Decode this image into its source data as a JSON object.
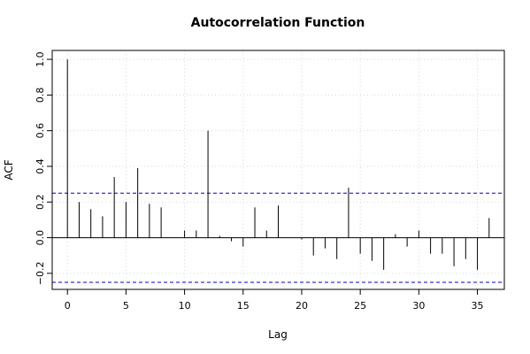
{
  "chart_data": {
    "type": "bar",
    "title": "Autocorrelation Function",
    "xlabel": "Lag",
    "ylabel": "ACF",
    "xlim": [
      -1.3,
      37.3
    ],
    "ylim": [
      -0.29,
      1.05
    ],
    "x_ticks": [
      0,
      5,
      10,
      15,
      20,
      25,
      30,
      35
    ],
    "y_ticks": [
      -0.2,
      0.0,
      0.2,
      0.4,
      0.6,
      0.8,
      1.0
    ],
    "y_tick_labels": [
      "−0.2",
      "0.0",
      "0.2",
      "0.4",
      "0.6",
      "0.8",
      "1.0"
    ],
    "grid": true,
    "confidence_bounds": [
      0.25,
      -0.25
    ],
    "lags": [
      0,
      1,
      2,
      3,
      4,
      5,
      6,
      7,
      8,
      9,
      10,
      11,
      12,
      13,
      14,
      15,
      16,
      17,
      18,
      19,
      20,
      21,
      22,
      23,
      24,
      25,
      26,
      27,
      28,
      29,
      30,
      31,
      32,
      33,
      34,
      35,
      36
    ],
    "values": [
      1.0,
      0.2,
      0.16,
      0.12,
      0.34,
      0.2,
      0.39,
      0.19,
      0.17,
      0.0,
      0.04,
      0.04,
      0.6,
      0.01,
      -0.02,
      -0.05,
      0.17,
      0.04,
      0.18,
      0.0,
      -0.01,
      -0.1,
      -0.06,
      -0.12,
      0.28,
      -0.09,
      -0.13,
      -0.18,
      0.02,
      -0.05,
      0.04,
      -0.09,
      -0.09,
      -0.16,
      -0.12,
      -0.18,
      0.11
    ],
    "colors": {
      "bars": "#000000",
      "bounds": "#0000cc",
      "grid": "#d8d8d8",
      "zero_line": "#000000",
      "frame": "#000000"
    }
  }
}
